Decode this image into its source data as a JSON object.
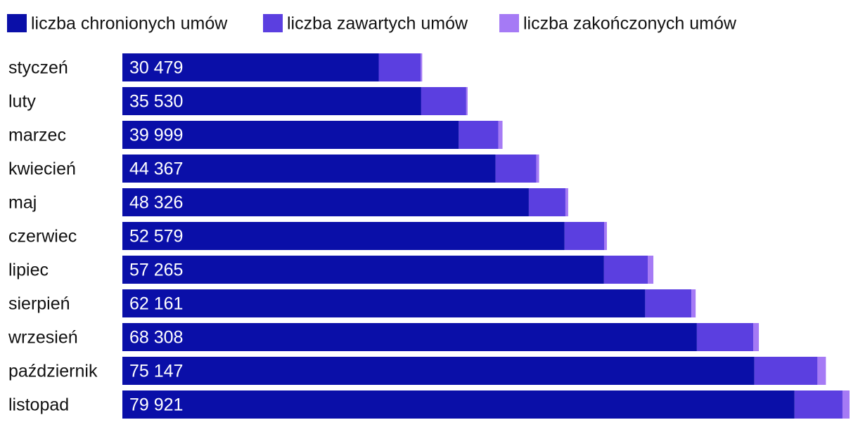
{
  "chart_data": {
    "type": "stacked-bar-horizontal",
    "categories": [
      "styczeń",
      "luty",
      "marzec",
      "kwiecień",
      "maj",
      "czerwiec",
      "lipiec",
      "sierpień",
      "wrzesień",
      "październik",
      "listopad"
    ],
    "series": [
      {
        "name": "liczba chronionych umów",
        "color": "#0a0fa8",
        "values": [
          30479,
          35530,
          39999,
          44367,
          48326,
          52579,
          57265,
          62161,
          68308,
          75147,
          79921
        ],
        "value_labels": [
          "30 479",
          "35 530",
          "39 999",
          "44 367",
          "48 326",
          "52 579",
          "57 265",
          "62 161",
          "68 308",
          "75 147",
          "79 921"
        ]
      },
      {
        "name": "liczba zawartych umów",
        "color": "#5b3fe0",
        "values": [
          5000,
          5350,
          4700,
          4850,
          4350,
          4700,
          5200,
          5500,
          6700,
          7500,
          5700
        ]
      },
      {
        "name": "liczba zakończonych umów",
        "color": "#a57af5",
        "values": [
          170,
          170,
          500,
          330,
          330,
          330,
          670,
          500,
          670,
          1000,
          840
        ]
      }
    ],
    "legend": "top-left"
  }
}
